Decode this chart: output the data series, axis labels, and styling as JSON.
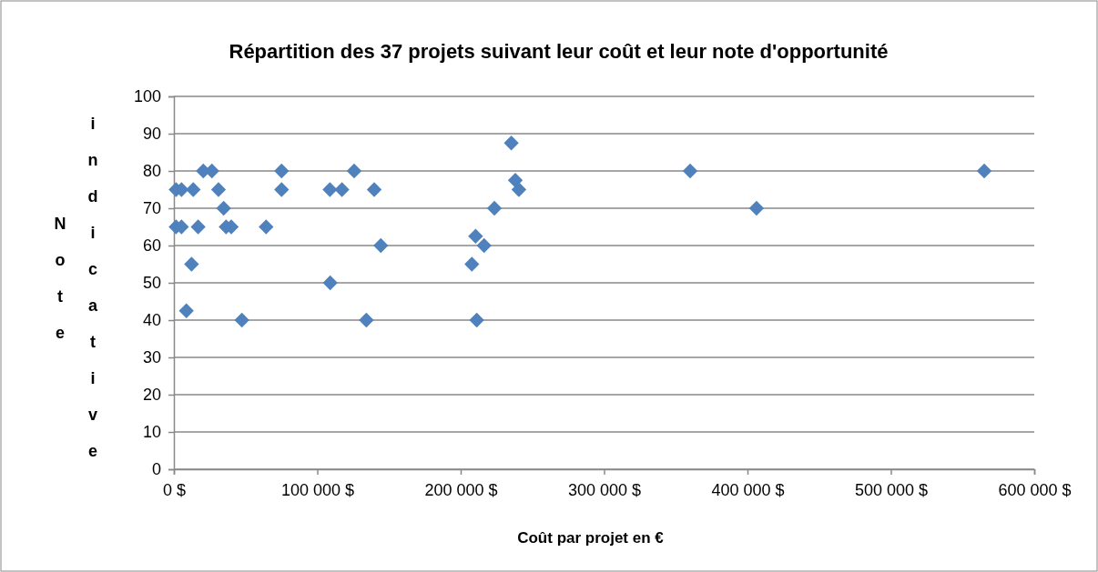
{
  "chart_data": {
    "type": "scatter",
    "title": "Répartition des 37 projets suivant leur coût et leur note d'opportunité",
    "xlabel": "Coût par projet en €",
    "ylabel": "Note indicative",
    "x": [
      20500,
      26500,
      75100,
      125700,
      1500,
      5300,
      13500,
      31100,
      75100,
      108800,
      117200,
      139700,
      34700,
      1500,
      5300,
      16900,
      36400,
      40000,
      64300,
      144300,
      12300,
      109000,
      8700,
      47400,
      134200,
      235300,
      238100,
      240600,
      223500,
      210400,
      216300,
      207800,
      211200,
      360000,
      406300,
      565100
    ],
    "values": [
      80,
      80,
      80,
      80,
      75,
      75,
      75,
      75,
      75,
      75,
      75,
      75,
      70,
      65,
      65,
      65,
      65,
      65,
      65,
      60,
      55,
      50,
      42.5,
      40,
      40,
      87.5,
      77.5,
      75,
      70,
      62.5,
      60,
      55,
      40,
      80,
      70,
      80
    ],
    "color": "#4f81bd",
    "marker": "diamond",
    "grid": "y",
    "xlim": [
      0,
      600000
    ],
    "xticks": [
      {
        "value": 0,
        "label": "0 $"
      },
      {
        "value": 100000,
        "label": "100 000 $"
      },
      {
        "value": 200000,
        "label": "200 000 $"
      },
      {
        "value": 300000,
        "label": "300 000 $"
      },
      {
        "value": 400000,
        "label": "400 000 $"
      },
      {
        "value": 500000,
        "label": "500 000 $"
      },
      {
        "value": 600000,
        "label": "600 000 $"
      }
    ],
    "ylim": [
      0,
      100
    ],
    "yticks": [
      0,
      10,
      20,
      30,
      40,
      50,
      60,
      70,
      80,
      90,
      100
    ]
  }
}
